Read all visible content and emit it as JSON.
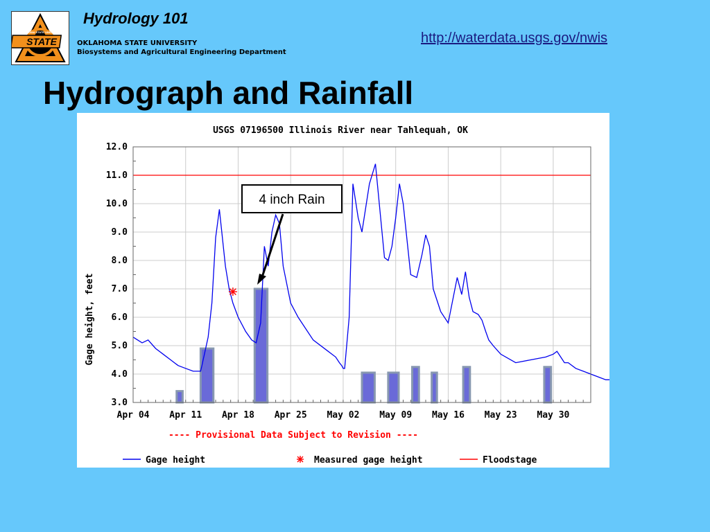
{
  "header": {
    "course_title": "Hydrology 101",
    "university": "OKLAHOMA STATE UNIVERSITY",
    "department": "Biosystems and Agricultural Engineering Department",
    "logo_text": "OKLAHOMA STATE UNIVERSITY",
    "logo_main": "STATE",
    "url": "http://waterdata.usgs.gov/nwis"
  },
  "slide": {
    "title": "Hydrograph and Rainfall"
  },
  "colors": {
    "background": "#66c8fb",
    "gage_line": "#0000ee",
    "floodstage": "#ff0000",
    "rain_bar_fill": "#6a6ad8",
    "rain_bar_edge": "#8898b0",
    "measured": "#ff0000",
    "notice": "#ff0000"
  },
  "chart_data": {
    "type": "line",
    "title": "USGS 07196500 Illinois River near Tahlequah, OK",
    "ylabel": "Gage height, feet",
    "xlabel": "",
    "ylim": [
      3.0,
      12.0
    ],
    "xlim": [
      "Apr 04",
      "Jun 04"
    ],
    "yticks": [
      "3.0",
      "4.0",
      "5.0",
      "6.0",
      "7.0",
      "8.0",
      "9.0",
      "10.0",
      "11.0",
      "12.0"
    ],
    "xticks": [
      "Apr 04",
      "Apr 11",
      "Apr 18",
      "Apr 25",
      "May 02",
      "May 09",
      "May 16",
      "May 23",
      "May 30"
    ],
    "grid": true,
    "notice": "---- Provisional Data Subject to Revision ----",
    "legend": [
      "Gage height",
      "Measured gage height",
      "Floodstage"
    ],
    "floodstage": 11.0,
    "series": [
      {
        "name": "Gage height",
        "x": [
          0,
          0.6,
          1.2,
          2,
          3,
          4,
          5,
          6,
          7,
          8,
          9,
          10,
          10.5,
          11,
          11.5,
          12.3,
          12.8,
          13.3,
          14,
          15,
          15.8,
          16.4,
          17,
          17.5,
          18,
          18.5,
          19,
          19.5,
          20,
          21,
          22,
          24,
          26,
          27,
          27.5,
          27.8,
          28,
          28.2,
          28.8,
          29.3,
          30,
          30.5,
          31.5,
          32.3,
          33,
          33.5,
          34,
          34.5,
          35,
          35.5,
          36,
          37,
          37.8,
          38.5,
          39,
          39.5,
          40,
          41,
          42,
          43.2,
          43.8,
          44.3,
          44.8,
          45.3,
          46,
          46.5,
          47,
          47.4,
          48,
          49,
          51,
          53,
          55,
          56,
          56.5,
          57,
          57.5,
          58,
          59,
          60,
          61,
          62,
          63,
          64,
          64.5
        ],
        "values": [
          5.3,
          5.2,
          5.1,
          5.2,
          4.9,
          4.7,
          4.5,
          4.3,
          4.2,
          4.1,
          4.1,
          5.3,
          6.5,
          8.8,
          9.8,
          7.8,
          7.0,
          6.5,
          6.0,
          5.5,
          5.2,
          5.1,
          5.8,
          8.5,
          7.8,
          9.0,
          9.6,
          9.3,
          7.8,
          6.5,
          6.0,
          5.2,
          4.8,
          4.6,
          4.4,
          4.3,
          4.2,
          4.2,
          6.0,
          10.7,
          9.5,
          9.0,
          10.7,
          11.4,
          9.5,
          8.1,
          8.0,
          8.5,
          9.5,
          10.7,
          10.0,
          7.5,
          7.4,
          8.2,
          8.9,
          8.5,
          7.0,
          6.2,
          5.8,
          7.4,
          6.8,
          7.6,
          6.7,
          6.2,
          6.1,
          5.9,
          5.5,
          5.2,
          5.0,
          4.7,
          4.4,
          4.5,
          4.6,
          4.7,
          4.8,
          4.6,
          4.4,
          4.4,
          4.2,
          4.1,
          4.0,
          3.9,
          3.8,
          3.8,
          3.75
        ]
      },
      {
        "name": "Measured gage height",
        "x": [
          13.3
        ],
        "values": [
          6.9
        ]
      }
    ],
    "bars": [
      {
        "x": 5.8,
        "width": 0.8,
        "value": 3.4
      },
      {
        "x": 9.0,
        "width": 1.7,
        "value": 4.9
      },
      {
        "x": 16.2,
        "width": 1.7,
        "value": 7.0
      },
      {
        "x": 30.5,
        "width": 1.7,
        "value": 4.05
      },
      {
        "x": 34.0,
        "width": 1.4,
        "value": 4.05
      },
      {
        "x": 37.2,
        "width": 0.9,
        "value": 4.25
      },
      {
        "x": 39.8,
        "width": 0.7,
        "value": 4.05
      },
      {
        "x": 44.0,
        "width": 0.9,
        "value": 4.25
      },
      {
        "x": 54.8,
        "width": 0.9,
        "value": 4.25
      }
    ],
    "annotation": {
      "text": "4 inch Rain"
    }
  }
}
